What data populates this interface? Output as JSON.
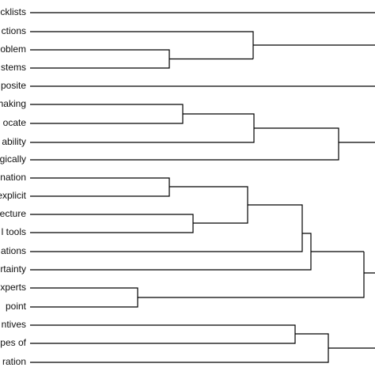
{
  "leaves": [
    "cklists",
    "ctions",
    "oblem",
    "stems",
    "posite",
    "haking",
    "ocate",
    "ability",
    "gically",
    "nation",
    "explicit",
    "ecture",
    "l tools",
    "ations",
    "rtainty",
    "xperts",
    "point",
    "ntives",
    "pes of",
    "ration"
  ]
}
